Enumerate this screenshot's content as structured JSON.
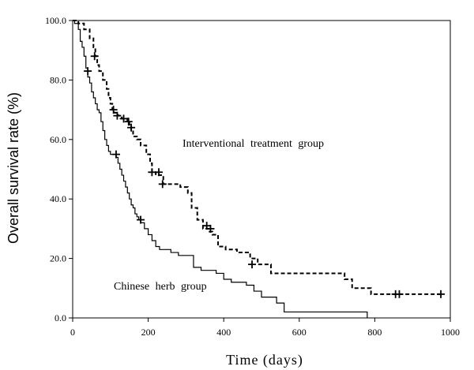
{
  "chart_data": {
    "type": "line",
    "title": "",
    "xlabel": "Time (days)",
    "ylabel": "Overall survival rate (%)",
    "xlim": [
      0,
      1000
    ],
    "ylim": [
      0,
      100
    ],
    "x_ticks": [
      0,
      200,
      400,
      600,
      800,
      1000
    ],
    "y_ticks": [
      0,
      20,
      40,
      60,
      80,
      100
    ],
    "x_tick_labels": [
      "0",
      "200",
      "400",
      "600",
      "800",
      "1000"
    ],
    "y_tick_labels": [
      "0.0",
      "20.0",
      "40.0",
      "60.0",
      "80.0",
      "100.0"
    ],
    "grid": false,
    "annotations": [
      {
        "text": "Interventional treatment group",
        "series": "interventional"
      },
      {
        "text": "Chinese herb group",
        "series": "herb"
      }
    ],
    "series": [
      {
        "id": "herb",
        "style": "solid",
        "color": "#000000",
        "x": [
          0,
          5,
          15,
          20,
          25,
          30,
          35,
          40,
          45,
          50,
          55,
          60,
          65,
          70,
          75,
          80,
          85,
          90,
          95,
          100,
          105,
          110,
          115,
          120,
          125,
          130,
          135,
          140,
          145,
          150,
          155,
          160,
          165,
          170,
          175,
          180,
          190,
          200,
          210,
          220,
          230,
          240,
          260,
          280,
          300,
          320,
          340,
          360,
          380,
          400,
          420,
          440,
          460,
          480,
          500,
          520,
          540,
          560,
          600,
          650,
          700,
          780
        ],
        "y": [
          100,
          99,
          97,
          93,
          91,
          88,
          84,
          81,
          79,
          76,
          74,
          72,
          70,
          69,
          66,
          63,
          60,
          58,
          56,
          55,
          55,
          55,
          54,
          52,
          50,
          48,
          46,
          44,
          42,
          40,
          38,
          37,
          35,
          34,
          33,
          32,
          30,
          28,
          26,
          24,
          23,
          23,
          22,
          21,
          21,
          17,
          16,
          16,
          15,
          13,
          12,
          12,
          11,
          9,
          7,
          7,
          5,
          2,
          2,
          2,
          2,
          0
        ],
        "censored": [
          {
            "x": 40,
            "y": 83
          },
          {
            "x": 115,
            "y": 55
          },
          {
            "x": 180,
            "y": 33
          }
        ]
      },
      {
        "id": "interventional",
        "style": "dashed",
        "color": "#000000",
        "x": [
          0,
          15,
          30,
          45,
          55,
          60,
          65,
          70,
          80,
          90,
          95,
          100,
          105,
          110,
          120,
          130,
          145,
          150,
          155,
          160,
          170,
          180,
          195,
          205,
          210,
          220,
          240,
          265,
          285,
          305,
          315,
          330,
          345,
          360,
          370,
          385,
          405,
          435,
          470,
          490,
          525,
          690,
          720,
          740,
          790,
          830,
          860,
          870,
          975
        ],
        "y": [
          100,
          99,
          97,
          94,
          91,
          88,
          85,
          83,
          80,
          77,
          74,
          72,
          70,
          69,
          68,
          67,
          66,
          65,
          63,
          61,
          60,
          58,
          55,
          52,
          49,
          48,
          45,
          45,
          44,
          42,
          37,
          33,
          30,
          29,
          28,
          24,
          23,
          22,
          20,
          18,
          15,
          15,
          13,
          10,
          8,
          8,
          8,
          8,
          8
        ],
        "censored": [
          {
            "x": 58,
            "y": 88
          },
          {
            "x": 108,
            "y": 70
          },
          {
            "x": 118,
            "y": 68
          },
          {
            "x": 135,
            "y": 67
          },
          {
            "x": 148,
            "y": 66
          },
          {
            "x": 155,
            "y": 64
          },
          {
            "x": 210,
            "y": 49
          },
          {
            "x": 228,
            "y": 49
          },
          {
            "x": 238,
            "y": 45
          },
          {
            "x": 355,
            "y": 31
          },
          {
            "x": 365,
            "y": 30
          },
          {
            "x": 475,
            "y": 18
          },
          {
            "x": 855,
            "y": 8
          },
          {
            "x": 865,
            "y": 8
          },
          {
            "x": 975,
            "y": 8
          }
        ]
      }
    ]
  }
}
